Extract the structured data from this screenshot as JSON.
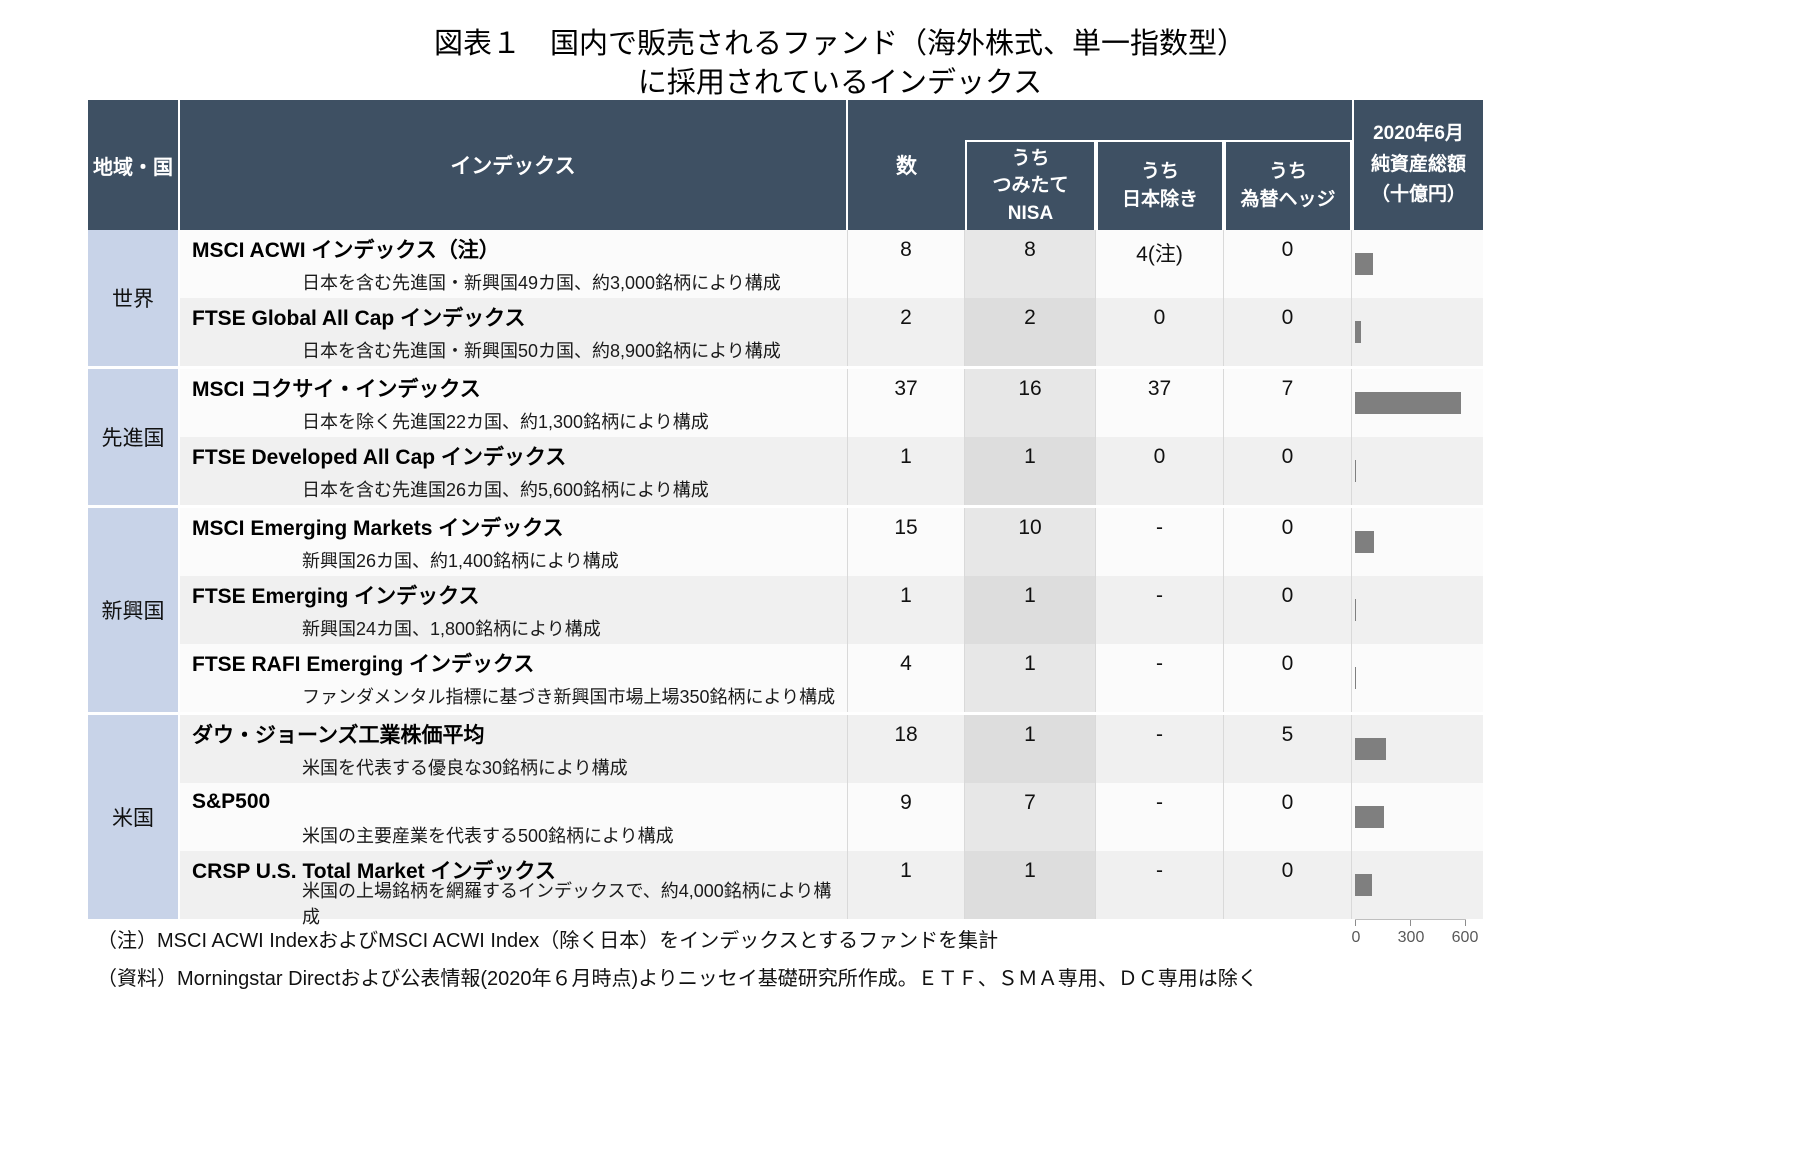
{
  "title": {
    "line1": "図表１　国内で販売されるファンド（海外株式、単一指数型）",
    "line2": "に採用されているインデックス"
  },
  "header": {
    "region": "地域・国",
    "index": "インデックス",
    "count": "数",
    "nisa": "うち\nつみたて\nNISA",
    "ex_japan": "うち\n日本除き",
    "hedge": "うち\n為替ヘッジ",
    "aum": "2020年6月\n純資産総額\n（十億円）"
  },
  "groups": [
    {
      "region": "世界",
      "rows": [
        {
          "name": "MSCI ACWI インデックス（注）",
          "desc": "日本を含む先進国・新興国49カ国、約3,000銘柄により構成",
          "count": "8",
          "nisa": "8",
          "ex_japan": "4(注)",
          "hedge": "0",
          "aum": 95
        },
        {
          "name": "FTSE Global All Cap インデックス",
          "desc": "日本を含む先進国・新興国50カ国、約8,900銘柄により構成",
          "count": "2",
          "nisa": "2",
          "ex_japan": "0",
          "hedge": "0",
          "aum": 30
        }
      ]
    },
    {
      "region": "先進国",
      "rows": [
        {
          "name": "MSCI コクサイ・インデックス",
          "desc": "日本を除く先進国22カ国、約1,300銘柄により構成",
          "count": "37",
          "nisa": "16",
          "ex_japan": "37",
          "hedge": "7",
          "aum": 575
        },
        {
          "name": "FTSE Developed All Cap インデックス",
          "desc": "日本を含む先進国26カ国、約5,600銘柄により構成",
          "count": "1",
          "nisa": "1",
          "ex_japan": "0",
          "hedge": "0",
          "aum": 8
        }
      ]
    },
    {
      "region": "新興国",
      "rows": [
        {
          "name": "MSCI Emerging Markets インデックス",
          "desc": "新興国26カ国、約1,400銘柄により構成",
          "count": "15",
          "nisa": "10",
          "ex_japan": "-",
          "hedge": "0",
          "aum": 105
        },
        {
          "name": "FTSE Emerging インデックス",
          "desc": "新興国24カ国、1,800銘柄により構成",
          "count": "1",
          "nisa": "1",
          "ex_japan": "-",
          "hedge": "0",
          "aum": 8
        },
        {
          "name": "FTSE RAFI Emerging インデックス",
          "desc": "ファンダメンタル指標に基づき新興国市場上場350銘柄により構成",
          "count": "4",
          "nisa": "1",
          "ex_japan": "-",
          "hedge": "0",
          "aum": 5
        }
      ]
    },
    {
      "region": "米国",
      "rows": [
        {
          "name": "ダウ・ジョーンズ工業株価平均",
          "desc": "米国を代表する優良な30銘柄により構成",
          "count": "18",
          "nisa": "1",
          "ex_japan": "-",
          "hedge": "5",
          "aum": 170
        },
        {
          "name": "S&P500",
          "desc": "米国の主要産業を代表する500銘柄により構成",
          "count": "9",
          "nisa": "7",
          "ex_japan": "-",
          "hedge": "0",
          "aum": 155
        },
        {
          "name": "CRSP U.S. Total Market インデックス",
          "desc": "米国の上場銘柄を網羅するインデックスで、約4,000銘柄により構成",
          "count": "1",
          "nisa": "1",
          "ex_japan": "-",
          "hedge": "0",
          "aum": 90
        }
      ]
    }
  ],
  "axis": {
    "tick0": "0",
    "tick1": "300",
    "tick2": "600"
  },
  "notes": {
    "note1": "（注）MSCI ACWI IndexおよびMSCI ACWI Index（除く日本）をインデックスとするファンドを集計",
    "note2": "（資料）Morningstar Directおよび公表情報(2020年６月時点)よりニッセイ基礎研究所作成。ＥＴＦ、ＳＭＡ専用、ＤＣ専用は除く"
  },
  "colors": {
    "header_bg": "#3E5063",
    "region_bg": "#C8D3E8",
    "row_alt": "#F0F0F0",
    "bar": "#7F7F7F"
  },
  "chart_data": {
    "type": "bar",
    "orientation": "horizontal",
    "title": "2020年6月純資産総額（十億円）",
    "categories": [
      "MSCI ACWI インデックス（注）",
      "FTSE Global All Cap インデックス",
      "MSCI コクサイ・インデックス",
      "FTSE Developed All Cap インデックス",
      "MSCI Emerging Markets インデックス",
      "FTSE Emerging インデックス",
      "FTSE RAFI Emerging インデックス",
      "ダウ・ジョーンズ工業株価平均",
      "S&P500",
      "CRSP U.S. Total Market インデックス"
    ],
    "values": [
      95,
      30,
      575,
      8,
      105,
      8,
      5,
      170,
      155,
      90
    ],
    "xlabel": "純資産総額（十億円）",
    "ylabel": "インデックス",
    "xlim": [
      0,
      600
    ],
    "x_ticks": [
      0,
      300,
      600
    ],
    "grid": false,
    "legend": false,
    "bar_color": "#7F7F7F"
  }
}
